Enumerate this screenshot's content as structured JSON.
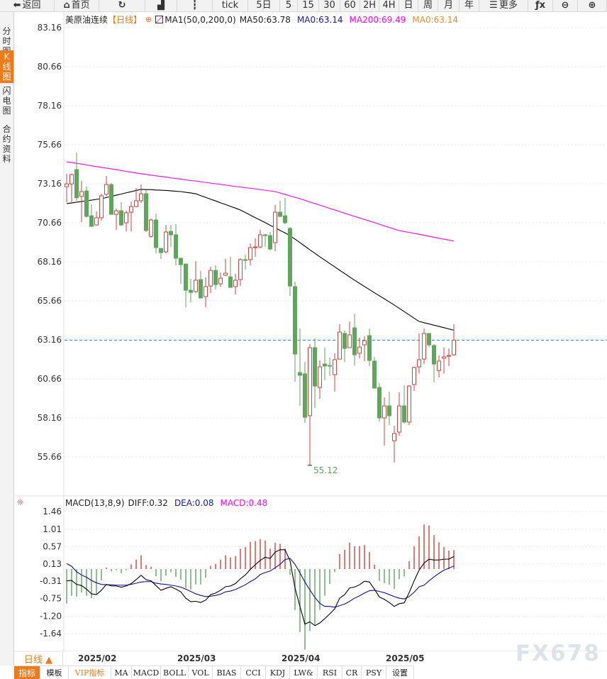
{
  "toolbar": {
    "items": [
      {
        "label": "返回",
        "icon": "back-arrow-icon",
        "w": 77
      },
      {
        "label": "首页",
        "icon": "home-icon",
        "w": 63
      },
      {
        "label": "",
        "icon": "refresh-icon",
        "w": 65
      },
      {
        "label": "",
        "icon": "bar-chart-icon",
        "w": 45
      },
      {
        "label": "",
        "icon": "candlestick-icon",
        "w": 50
      },
      {
        "label": "tick",
        "icon": "",
        "w": 50
      },
      {
        "label": "5日",
        "icon": "",
        "w": 45
      },
      {
        "label": "5",
        "icon": "",
        "w": 25
      },
      {
        "label": "15",
        "icon": "",
        "w": 30
      },
      {
        "label": "30",
        "icon": "",
        "w": 30
      },
      {
        "label": "60",
        "icon": "",
        "w": 28
      },
      {
        "label": "2H",
        "icon": "",
        "w": 27
      },
      {
        "label": "4H",
        "icon": "",
        "w": 28
      },
      {
        "label": "日",
        "icon": "",
        "w": 27
      },
      {
        "label": "周",
        "icon": "",
        "w": 28
      },
      {
        "label": "月",
        "icon": "",
        "w": 30
      },
      {
        "label": "年",
        "icon": "",
        "w": 28
      },
      {
        "label": "更多",
        "icon": "menu-icon",
        "w": 69
      },
      {
        "label": "",
        "icon": "function-fx-icon",
        "w": 35
      },
      {
        "label": "",
        "icon": "zoom-out-icon",
        "w": 35
      },
      {
        "label": "",
        "icon": "zoom-in-icon",
        "w": 41
      }
    ]
  },
  "sidebar": {
    "tabs": [
      {
        "label": "分时图",
        "active": false
      },
      {
        "label": "K线图",
        "active": true
      },
      {
        "label": "闪电图",
        "active": false
      },
      {
        "label": "合约资料",
        "active": false
      }
    ]
  },
  "main_legend": {
    "symbol": "美原油连续",
    "period": "【日线】",
    "indicator": "MA1(50,0,200,0)",
    "ma50": "MA50:63.78",
    "ma0_a": "MA0:63.14",
    "ma200": "MA200:69.49",
    "ma0_b": "MA0:63.14"
  },
  "macd_legend": {
    "name": "MACD(13,8,9)",
    "diff": "DIFF:0.32",
    "dea": "DEA:0.08",
    "macd": "MACD:0.48"
  },
  "colors": {
    "up": "#d9413b",
    "down": "#5da75a",
    "ma50": "#000000",
    "ma200": "#ff00ff",
    "dea": "#1010a0",
    "last_price_line": "#1a8cff",
    "accent": "#f07a1a",
    "ma0_a": "#1515b0",
    "ma0_b": "#f08a2a"
  },
  "chart_data": [
    {
      "type": "candlestick",
      "title": "美原油连续",
      "y_ticks": [
        "83.16",
        "80.66",
        "78.16",
        "75.66",
        "73.16",
        "70.66",
        "68.16",
        "65.66",
        "63.16",
        "60.66",
        "58.16",
        "55.66"
      ],
      "ylim": [
        55.66,
        83.16
      ],
      "x_ticks": [
        "2025/02",
        "2025/03",
        "2025/04",
        "2025/05"
      ],
      "last_price": 63.14,
      "low_annotation": "55.12",
      "ohlc": [
        [
          72.97,
          73.8,
          71.98,
          73.15
        ],
        [
          73.15,
          73.8,
          71.98,
          73.75
        ],
        [
          74.07,
          75.16,
          72.07,
          72.26
        ],
        [
          72.35,
          73.34,
          70.7,
          72.66
        ],
        [
          72.7,
          72.98,
          70.98,
          71.07
        ],
        [
          71.11,
          71.84,
          70.39,
          70.43
        ],
        [
          70.52,
          71.39,
          70.48,
          70.98
        ],
        [
          70.98,
          72.52,
          70.8,
          72.39
        ],
        [
          72.48,
          73.66,
          72.35,
          73.11
        ],
        [
          73.11,
          73.2,
          71.2,
          71.2
        ],
        [
          71.2,
          71.57,
          70.2,
          71.43
        ],
        [
          71.43,
          71.98,
          70.48,
          70.52
        ],
        [
          70.66,
          71.43,
          70.11,
          71.3
        ],
        [
          71.34,
          72.02,
          70.11,
          71.7
        ],
        [
          71.7,
          72.89,
          71.66,
          72.07
        ],
        [
          72.07,
          73.11,
          71.93,
          72.52
        ],
        [
          72.52,
          72.75,
          70.07,
          70.16
        ],
        [
          69.79,
          70.93,
          69.7,
          70.84
        ],
        [
          70.84,
          71.25,
          68.7,
          69.07
        ],
        [
          69.02,
          69.02,
          68.34,
          68.75
        ],
        [
          68.8,
          70.52,
          68.7,
          70.07
        ],
        [
          70.11,
          70.52,
          69.11,
          69.89
        ],
        [
          69.89,
          70.57,
          67.93,
          68.39
        ],
        [
          68.39,
          68.39,
          66.75,
          67.98
        ],
        [
          68.02,
          68.02,
          65.25,
          66.34
        ],
        [
          66.34,
          67.07,
          65.57,
          66.2
        ],
        [
          66.25,
          68.2,
          66.16,
          66.98
        ],
        [
          67.02,
          67.57,
          65.84,
          65.84
        ],
        [
          65.93,
          67.16,
          65.25,
          66.57
        ],
        [
          66.61,
          67.84,
          66.16,
          67.61
        ],
        [
          67.61,
          67.93,
          66.39,
          66.7
        ],
        [
          66.75,
          67.48,
          66.57,
          67.11
        ],
        [
          67.3,
          68.34,
          67.25,
          67.43
        ],
        [
          67.2,
          68.48,
          66.52,
          66.52
        ],
        [
          66.57,
          67.39,
          66.07,
          66.98
        ],
        [
          67.02,
          68.39,
          66.61,
          68.3
        ],
        [
          68.3,
          68.61,
          67.66,
          68.25
        ],
        [
          68.3,
          69.34,
          67.93,
          69.07
        ],
        [
          69.07,
          69.66,
          68.48,
          69.11
        ],
        [
          69.11,
          70.2,
          69.02,
          69.89
        ],
        [
          69.89,
          69.93,
          69.11,
          69.84
        ],
        [
          69.84,
          70.07,
          68.89,
          68.98
        ],
        [
          69.39,
          71.8,
          68.84,
          71.34
        ],
        [
          71.34,
          72.07,
          71.02,
          71.07
        ],
        [
          71.11,
          72.25,
          70.57,
          70.66
        ],
        [
          70.3,
          70.39,
          65.98,
          66.61
        ],
        [
          66.57,
          66.89,
          60.48,
          62.25
        ],
        [
          61.07,
          63.89,
          58.93,
          60.89
        ],
        [
          60.98,
          61.75,
          57.84,
          58.2
        ],
        [
          58.3,
          62.89,
          55.12,
          62.66
        ],
        [
          62.66,
          63.25,
          58.8,
          60.2
        ],
        [
          60.11,
          61.84,
          59.39,
          61.43
        ],
        [
          61.61,
          62.66,
          60.57,
          61.48
        ],
        [
          61.52,
          62.02,
          60.84,
          61.48
        ],
        [
          60.93,
          62.3,
          59.84,
          61.89
        ],
        [
          61.93,
          64.16,
          61.93,
          63.66
        ],
        [
          63.57,
          63.75,
          61.75,
          62.61
        ],
        [
          62.66,
          64.34,
          62.66,
          63.48
        ],
        [
          63.93,
          64.84,
          61.52,
          62.2
        ],
        [
          62.3,
          63.3,
          61.98,
          62.7
        ],
        [
          62.84,
          63.39,
          61.8,
          63.11
        ],
        [
          63.43,
          63.89,
          61.48,
          61.84
        ],
        [
          61.8,
          62.07,
          60.07,
          60.07
        ],
        [
          60.11,
          60.39,
          57.93,
          58.16
        ],
        [
          58.16,
          59.48,
          56.39,
          58.93
        ],
        [
          58.93,
          59.84,
          57.7,
          58.3
        ],
        [
          56.7,
          57.66,
          55.3,
          57.16
        ],
        [
          57.25,
          59.8,
          57.02,
          58.93
        ],
        [
          58.93,
          60.25,
          57.8,
          57.89
        ],
        [
          57.89,
          60.25,
          57.7,
          60.2
        ],
        [
          60.3,
          61.43,
          59.89,
          61.39
        ],
        [
          61.43,
          63.57,
          61.0,
          61.89
        ],
        [
          61.93,
          63.89,
          61.61,
          63.57
        ],
        [
          63.57,
          63.57,
          62.7,
          62.84
        ],
        [
          62.8,
          62.89,
          60.43,
          61.61
        ],
        [
          61.2,
          62.16,
          60.75,
          61.8
        ],
        [
          61.98,
          62.66,
          61.0,
          62.07
        ],
        [
          62.11,
          62.61,
          61.48,
          62.16
        ],
        [
          62.2,
          64.16,
          62.16,
          63.14
        ]
      ],
      "ma50": [
        71.89,
        71.93,
        71.98,
        72.02,
        72.07,
        72.11,
        72.16,
        72.2,
        72.28,
        72.35,
        72.43,
        72.5,
        72.58,
        72.65,
        72.73,
        72.8,
        72.79,
        72.78,
        72.76,
        72.75,
        72.73,
        72.71,
        72.68,
        72.66,
        72.61,
        72.57,
        72.52,
        72.4,
        72.29,
        72.17,
        72.06,
        71.94,
        71.83,
        71.71,
        71.6,
        71.48,
        71.32,
        71.15,
        70.99,
        70.83,
        70.67,
        70.5,
        70.34,
        70.17,
        70.01,
        69.84,
        69.61,
        69.39,
        69.16,
        68.93,
        68.71,
        68.48,
        68.27,
        68.05,
        67.84,
        67.62,
        67.41,
        67.19,
        66.98,
        66.78,
        66.58,
        66.38,
        66.18,
        65.98,
        65.79,
        65.59,
        65.39,
        65.18,
        64.97,
        64.76,
        64.55,
        64.34,
        64.26,
        64.18,
        64.1,
        64.02,
        63.94,
        63.86,
        63.78
      ],
      "ma200": [
        74.57,
        74.52,
        74.47,
        74.42,
        74.37,
        74.31,
        74.26,
        74.21,
        74.16,
        74.11,
        74.06,
        74.01,
        73.95,
        73.9,
        73.85,
        73.8,
        73.76,
        73.71,
        73.67,
        73.63,
        73.59,
        73.54,
        73.5,
        73.46,
        73.41,
        73.37,
        73.33,
        73.29,
        73.24,
        73.2,
        73.16,
        73.12,
        73.08,
        73.03,
        72.99,
        72.95,
        72.91,
        72.87,
        72.83,
        72.79,
        72.74,
        72.7,
        72.66,
        72.57,
        72.48,
        72.38,
        72.29,
        72.2,
        72.1,
        71.99,
        71.89,
        71.79,
        71.69,
        71.58,
        71.48,
        71.38,
        71.27,
        71.17,
        71.07,
        70.97,
        70.87,
        70.77,
        70.67,
        70.57,
        70.46,
        70.36,
        70.26,
        70.16,
        70.1,
        70.04,
        69.98,
        69.92,
        69.86,
        69.8,
        69.73,
        69.67,
        69.61,
        69.55,
        69.49
      ]
    },
    {
      "type": "macd",
      "y_ticks": [
        "1.46",
        "1.01",
        "0.57",
        "0.13",
        "-0.31",
        "-0.75",
        "-1.20",
        "-1.64"
      ],
      "ylim": [
        -1.64,
        1.46
      ],
      "diff": [
        -0.3,
        -0.29,
        -0.39,
        -0.42,
        -0.51,
        -0.63,
        -0.65,
        -0.54,
        -0.39,
        -0.43,
        -0.43,
        -0.46,
        -0.43,
        -0.37,
        -0.27,
        -0.16,
        -0.27,
        -0.3,
        -0.42,
        -0.54,
        -0.49,
        -0.45,
        -0.51,
        -0.58,
        -0.74,
        -0.83,
        -0.82,
        -0.85,
        -0.79,
        -0.65,
        -0.61,
        -0.54,
        -0.45,
        -0.43,
        -0.37,
        -0.25,
        -0.15,
        -0.01,
        0.11,
        0.22,
        0.3,
        0.27,
        0.43,
        0.49,
        0.49,
        0.21,
        -0.48,
        -0.95,
        -1.4,
        -1.34,
        -1.44,
        -1.37,
        -1.26,
        -1.14,
        -1.01,
        -0.74,
        -0.65,
        -0.48,
        -0.46,
        -0.4,
        -0.31,
        -0.33,
        -0.51,
        -0.71,
        -0.77,
        -0.85,
        -0.95,
        -0.88,
        -0.86,
        -0.6,
        -0.3,
        -0.03,
        0.15,
        0.25,
        0.23,
        0.23,
        0.25,
        0.25,
        0.32
      ],
      "dea": [
        0.14,
        0.07,
        -0.07,
        -0.15,
        -0.21,
        -0.29,
        -0.35,
        -0.39,
        -0.4,
        -0.4,
        -0.41,
        -0.41,
        -0.41,
        -0.39,
        -0.36,
        -0.33,
        -0.32,
        -0.32,
        -0.36,
        -0.38,
        -0.39,
        -0.41,
        -0.43,
        -0.46,
        -0.51,
        -0.57,
        -0.63,
        -0.67,
        -0.7,
        -0.69,
        -0.67,
        -0.64,
        -0.58,
        -0.56,
        -0.52,
        -0.46,
        -0.4,
        -0.32,
        -0.25,
        -0.14,
        -0.09,
        -0.05,
        0.03,
        0.12,
        0.24,
        0.27,
        0.12,
        -0.1,
        -0.33,
        -0.53,
        -0.72,
        -0.87,
        -0.95,
        -0.95,
        -0.97,
        -0.93,
        -0.89,
        -0.82,
        -0.74,
        -0.68,
        -0.61,
        -0.55,
        -0.54,
        -0.57,
        -0.6,
        -0.65,
        -0.7,
        -0.74,
        -0.76,
        -0.7,
        -0.59,
        -0.45,
        -0.41,
        -0.3,
        -0.2,
        -0.11,
        -0.03,
        0.02,
        0.08
      ],
      "macd": [
        -0.88,
        -0.68,
        -0.7,
        -0.6,
        -0.68,
        -0.74,
        -0.63,
        -0.29,
        0.04,
        -0.06,
        -0.03,
        -0.11,
        -0.03,
        0.12,
        0.24,
        0.35,
        0.1,
        0.06,
        -0.18,
        -0.31,
        -0.17,
        -0.08,
        -0.2,
        -0.27,
        -0.48,
        -0.52,
        -0.39,
        -0.39,
        -0.22,
        0.08,
        0.13,
        0.24,
        0.35,
        0.29,
        0.33,
        0.51,
        0.56,
        0.69,
        0.71,
        0.76,
        0.72,
        0.52,
        0.67,
        0.64,
        0.52,
        -0.15,
        -1.04,
        -1.6,
        -2.05,
        -1.58,
        -1.43,
        -1.04,
        -0.68,
        -0.38,
        -0.08,
        0.38,
        0.49,
        0.67,
        0.58,
        0.58,
        0.61,
        0.43,
        0.11,
        -0.3,
        -0.36,
        -0.4,
        -0.51,
        -0.26,
        -0.19,
        0.2,
        0.58,
        0.83,
        1.13,
        1.11,
        0.86,
        0.68,
        0.56,
        0.47,
        0.48
      ]
    }
  ],
  "time_axis": {
    "period_button": "日线 ▲",
    "labels": [
      "2025/02",
      "2025/03",
      "2025/04",
      "2025/05"
    ]
  },
  "bottom_tabs": [
    "指标",
    "模板",
    "VIP指标",
    "MA",
    "MACD",
    "BOLL",
    "VOL",
    "BIAS",
    "CCI",
    "KDJ",
    "LW&",
    "RSI",
    "CR",
    "PSY",
    "设置"
  ],
  "watermark": "FX678"
}
